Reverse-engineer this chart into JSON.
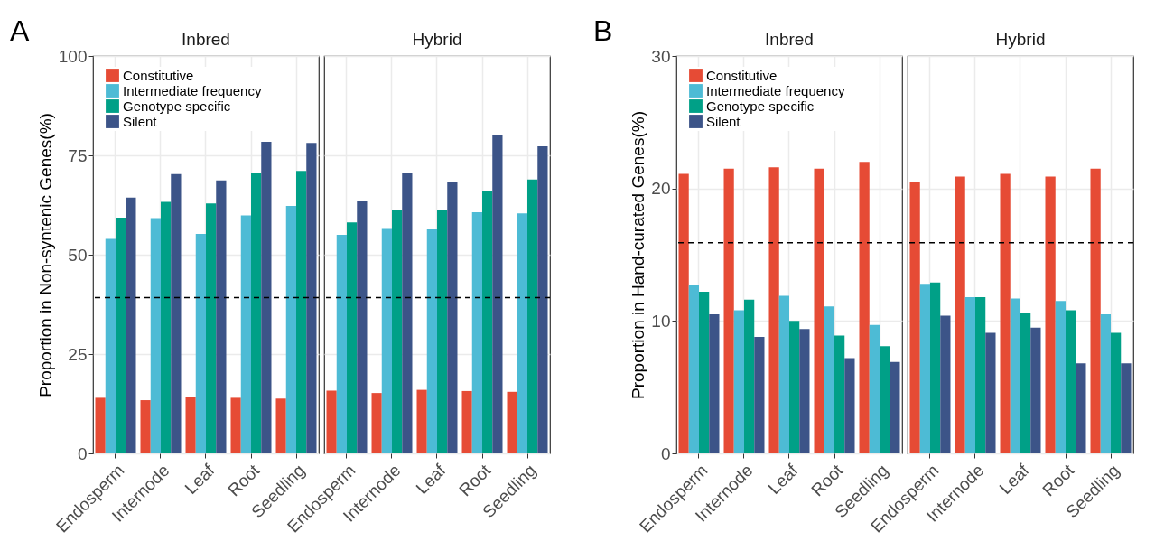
{
  "chart_data": [
    {
      "type": "bar",
      "title": "Inbred",
      "ylabel": "Proportion in Non-syntenic Genes(%)",
      "annotations": [
        "A"
      ],
      "categories": [
        "Endosperm",
        "Internode",
        "Leaf",
        "Root",
        "Seedling"
      ],
      "ylim": [
        0,
        100
      ],
      "yticks": [
        0,
        25,
        50,
        75,
        100
      ],
      "grid": true,
      "legend": "top left",
      "ref_lines": [
        {
          "axis": "y",
          "value": 39.2,
          "line_style": "dashed"
        }
      ],
      "series": [
        {
          "name": "Constitutive",
          "color": "#e64b35",
          "values": [
            14,
            13.4,
            14.3,
            14,
            13.8
          ]
        },
        {
          "name": "Intermediate frequency",
          "color": "#4dbbd5",
          "values": [
            54,
            59.2,
            55.2,
            59.9,
            62.3
          ]
        },
        {
          "name": "Genotype specific",
          "color": "#00a087",
          "values": [
            59.3,
            63.3,
            62.9,
            70.7,
            71.1
          ]
        },
        {
          "name": "Silent",
          "color": "#3c5488",
          "values": [
            64.4,
            70.3,
            68.7,
            78.4,
            78.1
          ]
        }
      ]
    },
    {
      "type": "bar",
      "title": "Hybrid",
      "categories": [
        "Endosperm",
        "Internode",
        "Leaf",
        "Root",
        "Seedling"
      ],
      "ylim": [
        0,
        100
      ],
      "yticks": [
        0,
        25,
        50,
        75,
        100
      ],
      "grid": true,
      "tick_labels": "x",
      "ref_lines": [
        {
          "axis": "y",
          "value": 39.2,
          "line_style": "dashed"
        }
      ],
      "series": [
        {
          "color": "#e64b35",
          "values": [
            15.8,
            15.2,
            16,
            15.7,
            15.5
          ]
        },
        {
          "color": "#4dbbd5",
          "values": [
            55,
            56.7,
            56.6,
            60.7,
            60.4
          ]
        },
        {
          "color": "#00a087",
          "values": [
            58.1,
            61.2,
            61.3,
            66,
            68.9
          ]
        },
        {
          "color": "#3c5488",
          "values": [
            63.4,
            70.6,
            68.2,
            80,
            77.3
          ]
        }
      ]
    },
    {
      "type": "bar",
      "title": "Inbred",
      "ylabel": "Proportion in Hand-curated Genes(%)",
      "annotations": [
        "B"
      ],
      "categories": [
        "Endosperm",
        "Internode",
        "Leaf",
        "Root",
        "Seedling"
      ],
      "ylim": [
        0,
        30
      ],
      "yticks": [
        0,
        10,
        20,
        30
      ],
      "grid": true,
      "legend": "top left",
      "ref_lines": [
        {
          "axis": "y",
          "value": 15.9,
          "line_style": "dashed"
        }
      ],
      "series": [
        {
          "name": "Constitutive",
          "color": "#e64b35",
          "values": [
            21.1,
            21.5,
            21.6,
            21.5,
            22
          ]
        },
        {
          "name": "Intermediate frequency",
          "color": "#4dbbd5",
          "values": [
            12.7,
            10.8,
            11.9,
            11.1,
            9.7
          ]
        },
        {
          "name": "Genotype specific",
          "color": "#00a087",
          "values": [
            12.2,
            11.6,
            10,
            8.9,
            8.1
          ]
        },
        {
          "name": "Silent",
          "color": "#3c5488",
          "values": [
            10.5,
            8.8,
            9.4,
            7.2,
            6.9
          ]
        }
      ]
    },
    {
      "type": "bar",
      "title": "Hybrid",
      "categories": [
        "Endosperm",
        "Internode",
        "Leaf",
        "Root",
        "Seedling"
      ],
      "ylim": [
        0,
        30
      ],
      "yticks": [
        0,
        10,
        20,
        30
      ],
      "grid": true,
      "tick_labels": "x",
      "ref_lines": [
        {
          "axis": "y",
          "value": 15.9,
          "line_style": "dashed"
        }
      ],
      "series": [
        {
          "color": "#e64b35",
          "values": [
            20.5,
            20.9,
            21.1,
            20.9,
            21.5
          ]
        },
        {
          "color": "#4dbbd5",
          "values": [
            12.8,
            11.8,
            11.7,
            11.5,
            10.5
          ]
        },
        {
          "color": "#00a087",
          "values": [
            12.9,
            11.8,
            10.6,
            10.8,
            9.1
          ]
        },
        {
          "color": "#3c5488",
          "values": [
            10.4,
            9.1,
            9.5,
            6.8,
            6.8
          ]
        }
      ]
    }
  ]
}
